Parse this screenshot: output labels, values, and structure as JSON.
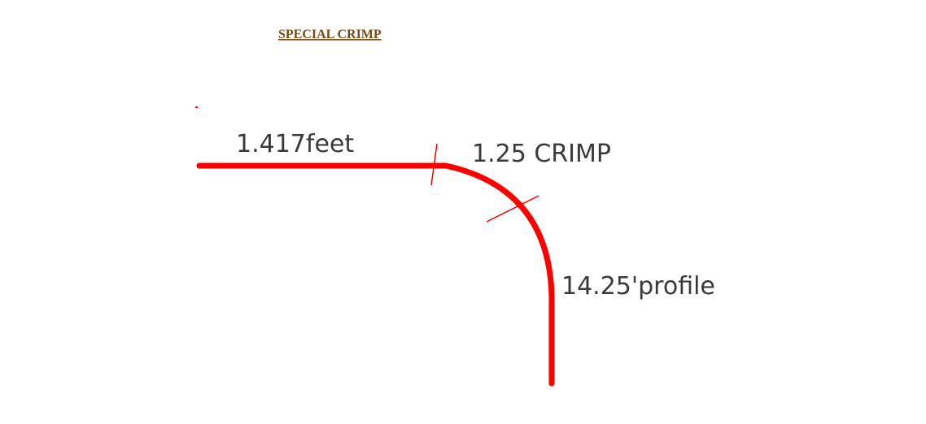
{
  "title": "SPECIAL CRIMP",
  "labels": {
    "flat_segment": "1.417feet",
    "crimp": "1.25 CRIMP",
    "profile": "14.25'profile"
  },
  "colors": {
    "title": "#7a4a12",
    "profile_line": "#ff0000",
    "tick_marks": "#ff0000",
    "label_text": "#3a3a3a",
    "background": "#ffffff"
  }
}
